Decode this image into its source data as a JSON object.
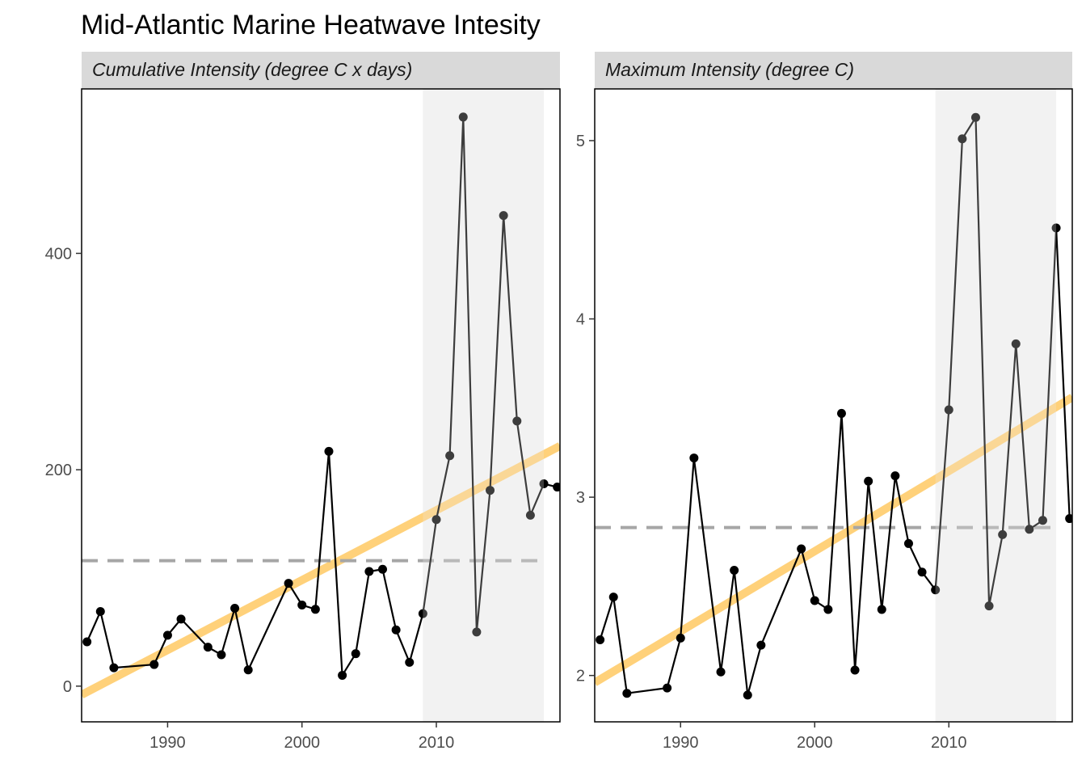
{
  "title": "Mid-Atlantic Marine Heatwave Intesity",
  "colors": {
    "line": "#000000",
    "point": "#000000",
    "trend": "#ffc14d",
    "mean_line": "#a6a6a6",
    "shade": "#f2f2f2",
    "strip": "#d9d9d9",
    "panel_border": "#000000"
  },
  "chart_data": [
    {
      "type": "line",
      "strip_label": "Cumulative Intensity (degree C x days)",
      "xlim": [
        1983.6,
        2019.2
      ],
      "ylim": [
        -33,
        552
      ],
      "x_ticks": [
        1990,
        2000,
        2010
      ],
      "x_tick_labels": [
        "1990",
        "2000",
        "2010"
      ],
      "y_ticks": [
        0,
        200,
        400
      ],
      "y_tick_labels": [
        "0",
        "200",
        "400"
      ],
      "shaded_range": [
        2009,
        2018
      ],
      "mean": 116,
      "trend": {
        "x": [
          1983.6,
          2019.2
        ],
        "y": [
          -8,
          222
        ]
      },
      "series": [
        {
          "x": [
            1984,
            1985,
            1986,
            1989,
            1990,
            1991,
            1993,
            1994,
            1995,
            1996,
            1999,
            2000,
            2001,
            2002,
            2003,
            2004,
            2005,
            2006,
            2007,
            2008,
            2009,
            2010,
            2011,
            2012,
            2013,
            2014,
            2015,
            2016,
            2017,
            2018,
            2019
          ],
          "y": [
            41,
            69,
            17,
            20,
            47,
            62,
            36,
            29,
            72,
            15,
            95,
            75,
            71,
            217,
            10,
            30,
            106,
            108,
            52,
            22,
            67,
            154,
            213,
            526,
            50,
            181,
            435,
            245,
            158,
            187,
            184
          ]
        }
      ]
    },
    {
      "type": "line",
      "strip_label": "Maximum Intensity (degree C)",
      "xlim": [
        1983.6,
        2019.2
      ],
      "ylim": [
        1.74,
        5.29
      ],
      "x_ticks": [
        1990,
        2000,
        2010
      ],
      "x_tick_labels": [
        "1990",
        "2000",
        "2010"
      ],
      "y_ticks": [
        2,
        3,
        4,
        5
      ],
      "y_tick_labels": [
        "2",
        "3",
        "4",
        "5"
      ],
      "shaded_range": [
        2009,
        2018
      ],
      "mean": 2.83,
      "trend": {
        "x": [
          1983.6,
          2019.2
        ],
        "y": [
          1.96,
          3.56
        ]
      },
      "series": [
        {
          "x": [
            1984,
            1985,
            1986,
            1989,
            1990,
            1991,
            1993,
            1994,
            1995,
            1996,
            1999,
            2000,
            2001,
            2002,
            2003,
            2004,
            2005,
            2006,
            2007,
            2008,
            2009,
            2010,
            2011,
            2012,
            2013,
            2014,
            2015,
            2016,
            2017,
            2018,
            2019
          ],
          "y": [
            2.2,
            2.44,
            1.9,
            1.93,
            2.21,
            3.22,
            2.02,
            2.59,
            1.89,
            2.17,
            2.71,
            2.42,
            2.37,
            3.47,
            2.03,
            3.09,
            2.37,
            3.12,
            2.74,
            2.58,
            2.48,
            3.49,
            5.01,
            5.13,
            2.39,
            2.79,
            3.86,
            2.82,
            2.87,
            4.51,
            2.88
          ]
        }
      ]
    }
  ]
}
